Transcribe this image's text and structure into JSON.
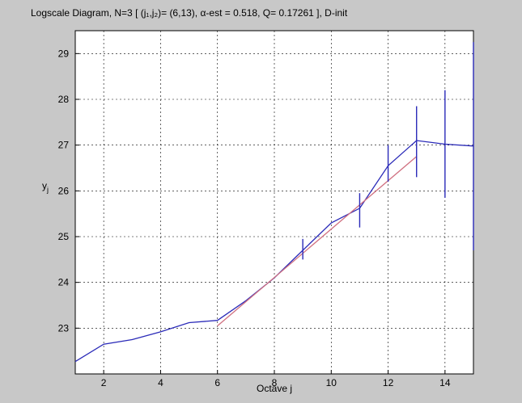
{
  "chart_data": {
    "type": "line",
    "title": "Logscale Diagram,  N=3   [ (j₁,j₂)= (6,13),   α-est = 0.518,   Q= 0.17261 ],   D-init",
    "xlabel": "Octave j",
    "ylabel": "y",
    "ylabel_sub": "j",
    "xlim": [
      1,
      15
    ],
    "ylim": [
      22,
      29.5
    ],
    "x_ticks": [
      "2",
      "4",
      "6",
      "8",
      "10",
      "12",
      "14"
    ],
    "y_ticks": [
      "23",
      "24",
      "25",
      "26",
      "27",
      "28",
      "29"
    ],
    "grid": true,
    "series": [
      {
        "color": "#2a2ab8",
        "x": [
          1,
          2,
          3,
          4,
          5,
          6,
          7,
          8,
          9,
          10,
          11,
          12,
          13,
          14,
          15
        ],
        "y": [
          22.27,
          22.65,
          22.75,
          22.92,
          23.12,
          23.17,
          23.6,
          24.1,
          24.7,
          25.3,
          25.62,
          26.55,
          27.1,
          27.02,
          26.98
        ]
      },
      {
        "color": "#d07080",
        "x": [
          6,
          13
        ],
        "y": [
          23.05,
          26.75
        ]
      }
    ],
    "error_bars": [
      {
        "x": 9,
        "low": 24.5,
        "high": 24.95
      },
      {
        "x": 11,
        "low": 25.2,
        "high": 25.95
      },
      {
        "x": 12,
        "low": 26.2,
        "high": 27.0
      },
      {
        "x": 13,
        "low": 26.3,
        "high": 27.85
      },
      {
        "x": 14,
        "low": 25.85,
        "high": 28.2
      },
      {
        "x": 15,
        "low": 24.7,
        "high": 29.25
      }
    ]
  }
}
